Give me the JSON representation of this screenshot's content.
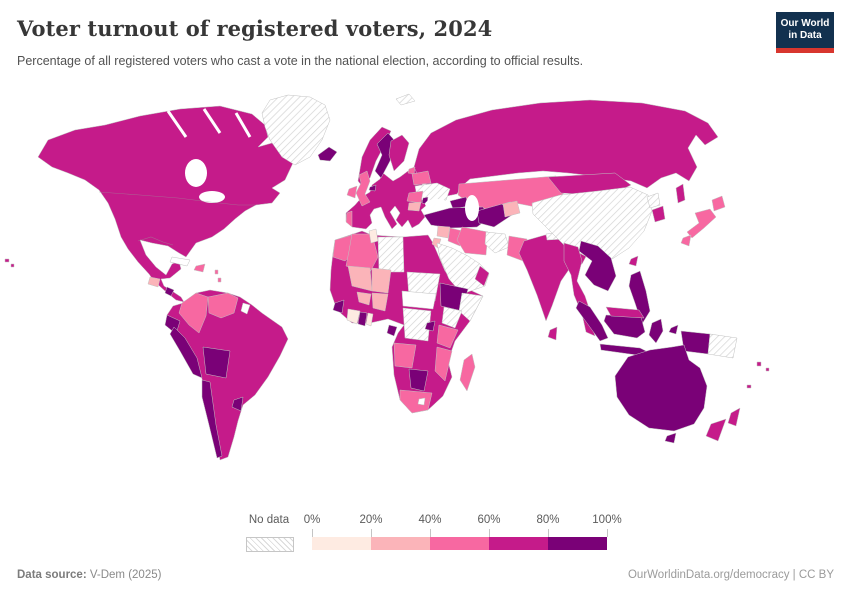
{
  "header": {
    "title": "Voter turnout of registered voters, 2024",
    "subtitle": "Percentage of all registered voters who cast a vote in the national election, according to official results."
  },
  "logo": {
    "line1": "Our World",
    "line2": "in Data",
    "bg": "#12314f",
    "bar": "#d8362e"
  },
  "legend": {
    "no_data_label": "No data",
    "tick_labels": [
      "0%",
      "20%",
      "40%",
      "60%",
      "80%",
      "100%"
    ],
    "bins": [
      {
        "key": "0-20",
        "label": "0-20%",
        "color": "#feebe2"
      },
      {
        "key": "20-40",
        "label": "20-40%",
        "color": "#fbb4b9"
      },
      {
        "key": "40-60",
        "label": "40-60%",
        "color": "#f768a1"
      },
      {
        "key": "60-80",
        "label": "60-80%",
        "color": "#c51b8a"
      },
      {
        "key": "80-100",
        "label": "80-100%",
        "color": "#7a0177"
      }
    ]
  },
  "footer": {
    "source_label": "Data source:",
    "source_value": " V-Dem (2025)",
    "credit": "OurWorldinData.org/democracy | CC BY"
  },
  "map": {
    "empty_color": "#ffffff",
    "border_color": "#c2c2c2",
    "regions": [
      {
        "id": "north-america",
        "bin": "60-80"
      },
      {
        "id": "greenland",
        "bin": "no-data"
      },
      {
        "id": "iceland",
        "bin": "80-100"
      },
      {
        "id": "hawaii",
        "bin": "60-80"
      },
      {
        "id": "guatemala",
        "bin": "20-40"
      },
      {
        "id": "costa-rica",
        "bin": "80-100"
      },
      {
        "id": "cuba",
        "bin": "empty"
      },
      {
        "id": "hispaniola",
        "bin": "40-60"
      },
      {
        "id": "lesser-antilles",
        "bin": "40-60"
      },
      {
        "id": "south-america",
        "bin": "60-80"
      },
      {
        "id": "colombia",
        "bin": "40-60"
      },
      {
        "id": "venezuela",
        "bin": "40-60"
      },
      {
        "id": "suriname",
        "bin": "empty"
      },
      {
        "id": "ecuador",
        "bin": "80-100"
      },
      {
        "id": "peru",
        "bin": "80-100"
      },
      {
        "id": "bolivia",
        "bin": "80-100"
      },
      {
        "id": "chile",
        "bin": "80-100"
      },
      {
        "id": "uruguay",
        "bin": "80-100"
      },
      {
        "id": "europe-mainland",
        "bin": "60-80"
      },
      {
        "id": "portugal",
        "bin": "40-60"
      },
      {
        "id": "united-kingdom",
        "bin": "40-60"
      },
      {
        "id": "ireland",
        "bin": "40-60"
      },
      {
        "id": "belgium",
        "bin": "80-100"
      },
      {
        "id": "norway",
        "bin": "60-80"
      },
      {
        "id": "sweden",
        "bin": "80-100"
      },
      {
        "id": "finland",
        "bin": "60-80"
      },
      {
        "id": "estonia",
        "bin": "40-60"
      },
      {
        "id": "belarus",
        "bin": "40-60"
      },
      {
        "id": "ukraine",
        "bin": "no-data"
      },
      {
        "id": "moldova",
        "bin": "80-100"
      },
      {
        "id": "romania",
        "bin": "40-60"
      },
      {
        "id": "bulgaria",
        "bin": "20-40"
      },
      {
        "id": "russia",
        "bin": "60-80"
      },
      {
        "id": "svalbard",
        "bin": "no-data"
      },
      {
        "id": "caucasus",
        "bin": "80-100"
      },
      {
        "id": "turkey",
        "bin": "80-100"
      },
      {
        "id": "syria",
        "bin": "20-40"
      },
      {
        "id": "jordan",
        "bin": "20-40"
      },
      {
        "id": "iraq",
        "bin": "40-60"
      },
      {
        "id": "iran",
        "bin": "40-60"
      },
      {
        "id": "arabia",
        "bin": "no-data"
      },
      {
        "id": "oman-uae",
        "bin": "60-80"
      },
      {
        "id": "kazakhstan",
        "bin": "40-60"
      },
      {
        "id": "turkmenistan-uzbekistan",
        "bin": "80-100"
      },
      {
        "id": "kyrgyzstan-tajikistan",
        "bin": "20-40"
      },
      {
        "id": "afghanistan",
        "bin": "no-data"
      },
      {
        "id": "pakistan",
        "bin": "40-60"
      },
      {
        "id": "india",
        "bin": "60-80"
      },
      {
        "id": "nepal",
        "bin": "no-data"
      },
      {
        "id": "bangladesh",
        "bin": "20-40"
      },
      {
        "id": "sri-lanka",
        "bin": "60-80"
      },
      {
        "id": "china",
        "bin": "no-data"
      },
      {
        "id": "mongolia",
        "bin": "60-80"
      },
      {
        "id": "north-korea",
        "bin": "no-data"
      },
      {
        "id": "south-korea",
        "bin": "60-80"
      },
      {
        "id": "japan",
        "bin": "40-60"
      },
      {
        "id": "sakhalin",
        "bin": "60-80"
      },
      {
        "id": "taiwan",
        "bin": "60-80"
      },
      {
        "id": "myanmar-thailand",
        "bin": "60-80"
      },
      {
        "id": "malay-peninsula",
        "bin": "60-80"
      },
      {
        "id": "indochina",
        "bin": "80-100"
      },
      {
        "id": "philippines",
        "bin": "80-100"
      },
      {
        "id": "malaysia-borneo",
        "bin": "60-80"
      },
      {
        "id": "borneo-indonesia",
        "bin": "80-100"
      },
      {
        "id": "sumatra",
        "bin": "80-100"
      },
      {
        "id": "java",
        "bin": "80-100"
      },
      {
        "id": "sulawesi",
        "bin": "80-100"
      },
      {
        "id": "moluccas",
        "bin": "80-100"
      },
      {
        "id": "new-guinea-west",
        "bin": "80-100"
      },
      {
        "id": "papua-new-guinea",
        "bin": "no-data"
      },
      {
        "id": "australia",
        "bin": "80-100"
      },
      {
        "id": "tasmania",
        "bin": "80-100"
      },
      {
        "id": "new-zealand",
        "bin": "60-80"
      },
      {
        "id": "pacific-islands",
        "bin": "60-80"
      },
      {
        "id": "africa-base",
        "bin": "60-80"
      },
      {
        "id": "morocco",
        "bin": "40-60"
      },
      {
        "id": "algeria",
        "bin": "40-60"
      },
      {
        "id": "tunisia",
        "bin": "0-20"
      },
      {
        "id": "libya",
        "bin": "no-data"
      },
      {
        "id": "mali",
        "bin": "20-40"
      },
      {
        "id": "niger",
        "bin": "20-40"
      },
      {
        "id": "burkina-faso",
        "bin": "20-40"
      },
      {
        "id": "nigeria",
        "bin": "20-40"
      },
      {
        "id": "ivory-coast",
        "bin": "0-20"
      },
      {
        "id": "benin",
        "bin": "0-20"
      },
      {
        "id": "ghana",
        "bin": "80-100"
      },
      {
        "id": "guinea",
        "bin": "80-100"
      },
      {
        "id": "sudan",
        "bin": "no-data"
      },
      {
        "id": "central-africa",
        "bin": "empty"
      },
      {
        "id": "ethiopia",
        "bin": "80-100"
      },
      {
        "id": "somalia",
        "bin": "no-data"
      },
      {
        "id": "kenya",
        "bin": "no-data"
      },
      {
        "id": "drc",
        "bin": "no-data"
      },
      {
        "id": "gabon",
        "bin": "80-100"
      },
      {
        "id": "tanzania",
        "bin": "40-60"
      },
      {
        "id": "rwanda",
        "bin": "80-100"
      },
      {
        "id": "angola",
        "bin": "40-60"
      },
      {
        "id": "mozambique",
        "bin": "40-60"
      },
      {
        "id": "madagascar",
        "bin": "40-60"
      },
      {
        "id": "botswana",
        "bin": "80-100"
      },
      {
        "id": "south-africa",
        "bin": "40-60"
      },
      {
        "id": "lesotho",
        "bin": "empty"
      }
    ]
  },
  "chart_data": {
    "type": "choropleth",
    "title": "Voter turnout of registered voters, 2024",
    "unit": "% of registered voters",
    "legend_bins": [
      "0-20%",
      "20-40%",
      "40-60%",
      "60-80%",
      "80-100%",
      "No data"
    ],
    "bin_colors": [
      "#feebe2",
      "#fbb4b9",
      "#f768a1",
      "#c51b8a",
      "#7a0177",
      "hatched"
    ],
    "countries_by_bin": {
      "0-20%": [
        "Tunisia",
        "Cote d'Ivoire",
        "Benin"
      ],
      "20-40%": [
        "Mali",
        "Niger",
        "Nigeria",
        "Burkina Faso",
        "Syria",
        "Jordan",
        "Bulgaria",
        "Kyrgyzstan",
        "Guatemala",
        "Bangladesh"
      ],
      "40-60%": [
        "United Kingdom",
        "Ireland",
        "Portugal",
        "Romania",
        "Belarus",
        "Estonia",
        "Kazakhstan",
        "Iran",
        "Iraq",
        "Pakistan",
        "Japan",
        "Colombia",
        "Venezuela",
        "Dominican Republic",
        "Morocco",
        "Algeria",
        "Tanzania",
        "Mozambique",
        "Madagascar",
        "Angola",
        "South Africa"
      ],
      "60-80%": [
        "United States",
        "Canada",
        "Mexico",
        "Panama",
        "Honduras",
        "Brazil",
        "Argentina",
        "Paraguay",
        "Guyana",
        "Norway",
        "Finland",
        "France",
        "Germany",
        "Spain",
        "Italy",
        "Greece",
        "Poland",
        "Russia",
        "Mongolia",
        "India",
        "South Korea",
        "Taiwan",
        "Thailand",
        "Myanmar",
        "Malaysia",
        "Sri Lanka",
        "New Zealand",
        "Egypt",
        "Senegal",
        "Mauritania",
        "Chad",
        "Cameroon",
        "Namibia",
        "Zambia",
        "Zimbabwe",
        "Oman"
      ],
      "80-100%": [
        "Iceland",
        "Sweden",
        "Belgium",
        "Turkey",
        "Moldova",
        "Georgia",
        "Azerbaijan",
        "Uzbekistan",
        "Turkmenistan",
        "Ecuador",
        "Peru",
        "Bolivia",
        "Chile",
        "Uruguay",
        "Costa Rica",
        "Ethiopia",
        "Rwanda",
        "Ghana",
        "Guinea",
        "Gabon",
        "Botswana",
        "Vietnam",
        "Laos",
        "Cambodia",
        "Indonesia",
        "Philippines",
        "Australia"
      ],
      "No data": [
        "Greenland",
        "Ukraine",
        "China",
        "Saudi Arabia",
        "Yemen",
        "Afghanistan",
        "Libya",
        "Sudan",
        "Somalia",
        "Kenya",
        "DR Congo",
        "North Korea",
        "Papua New Guinea",
        "Nepal"
      ]
    }
  }
}
